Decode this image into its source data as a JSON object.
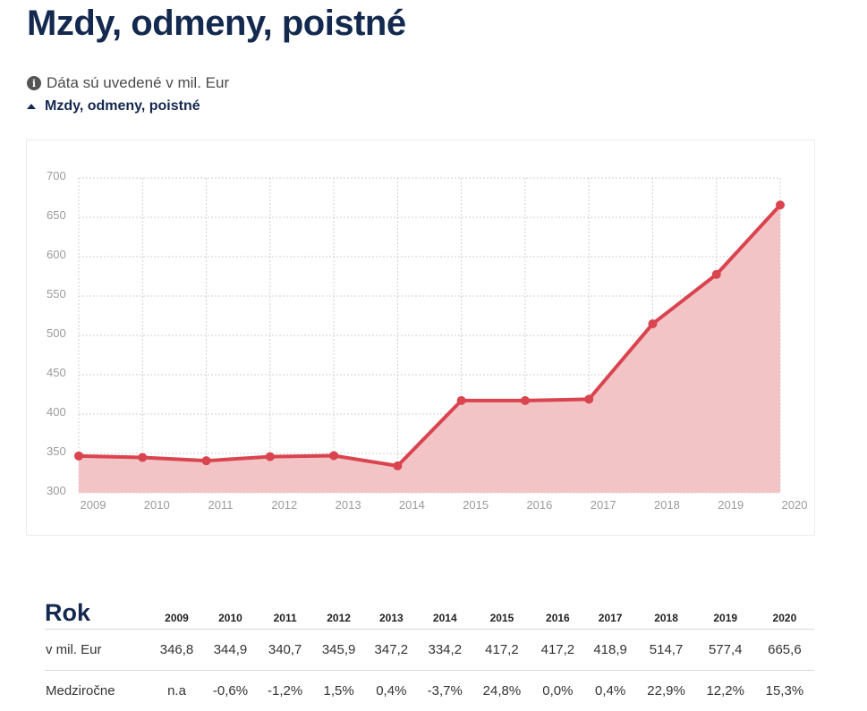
{
  "page": {
    "title": "Mzdy, odmeny, poistné",
    "note": "Dáta sú uvedené v mil. Eur",
    "toggle_label": "Mzdy, odmeny, poistné"
  },
  "colors": {
    "title": "#14294f",
    "line": "#d9444f",
    "area": "#f2c4c6",
    "grid": "#d0d0d0"
  },
  "chart_data": {
    "type": "area",
    "x": [
      "2009",
      "2010",
      "2011",
      "2012",
      "2013",
      "2014",
      "2015",
      "2016",
      "2017",
      "2018",
      "2019",
      "2020"
    ],
    "series": [
      {
        "values": [
          346.8,
          344.9,
          340.7,
          345.9,
          347.2,
          334.2,
          417.2,
          417.2,
          418.9,
          514.7,
          577.4,
          665.6
        ]
      }
    ],
    "ylim": [
      300,
      700
    ],
    "yticks": [
      "700",
      "650",
      "600",
      "550",
      "500",
      "450",
      "400",
      "350",
      "300"
    ],
    "ytick_values": [
      700,
      650,
      600,
      550,
      500,
      450,
      400,
      350,
      300
    ],
    "grid": true,
    "legend": "none"
  },
  "table": {
    "header_label": "Rok",
    "years": [
      "2009",
      "2010",
      "2011",
      "2012",
      "2013",
      "2014",
      "2015",
      "2016",
      "2017",
      "2018",
      "2019",
      "2020"
    ],
    "rows": [
      {
        "label": "v mil. Eur",
        "cells": [
          "346,8",
          "344,9",
          "340,7",
          "345,9",
          "347,2",
          "334,2",
          "417,2",
          "417,2",
          "418,9",
          "514,7",
          "577,4",
          "665,6"
        ]
      },
      {
        "label": "Medziročne",
        "cells": [
          "n.a",
          "-0,6%",
          "-1,2%",
          "1,5%",
          "0,4%",
          "-3,7%",
          "24,8%",
          "0,0%",
          "0,4%",
          "22,9%",
          "12,2%",
          "15,3%"
        ]
      }
    ]
  }
}
